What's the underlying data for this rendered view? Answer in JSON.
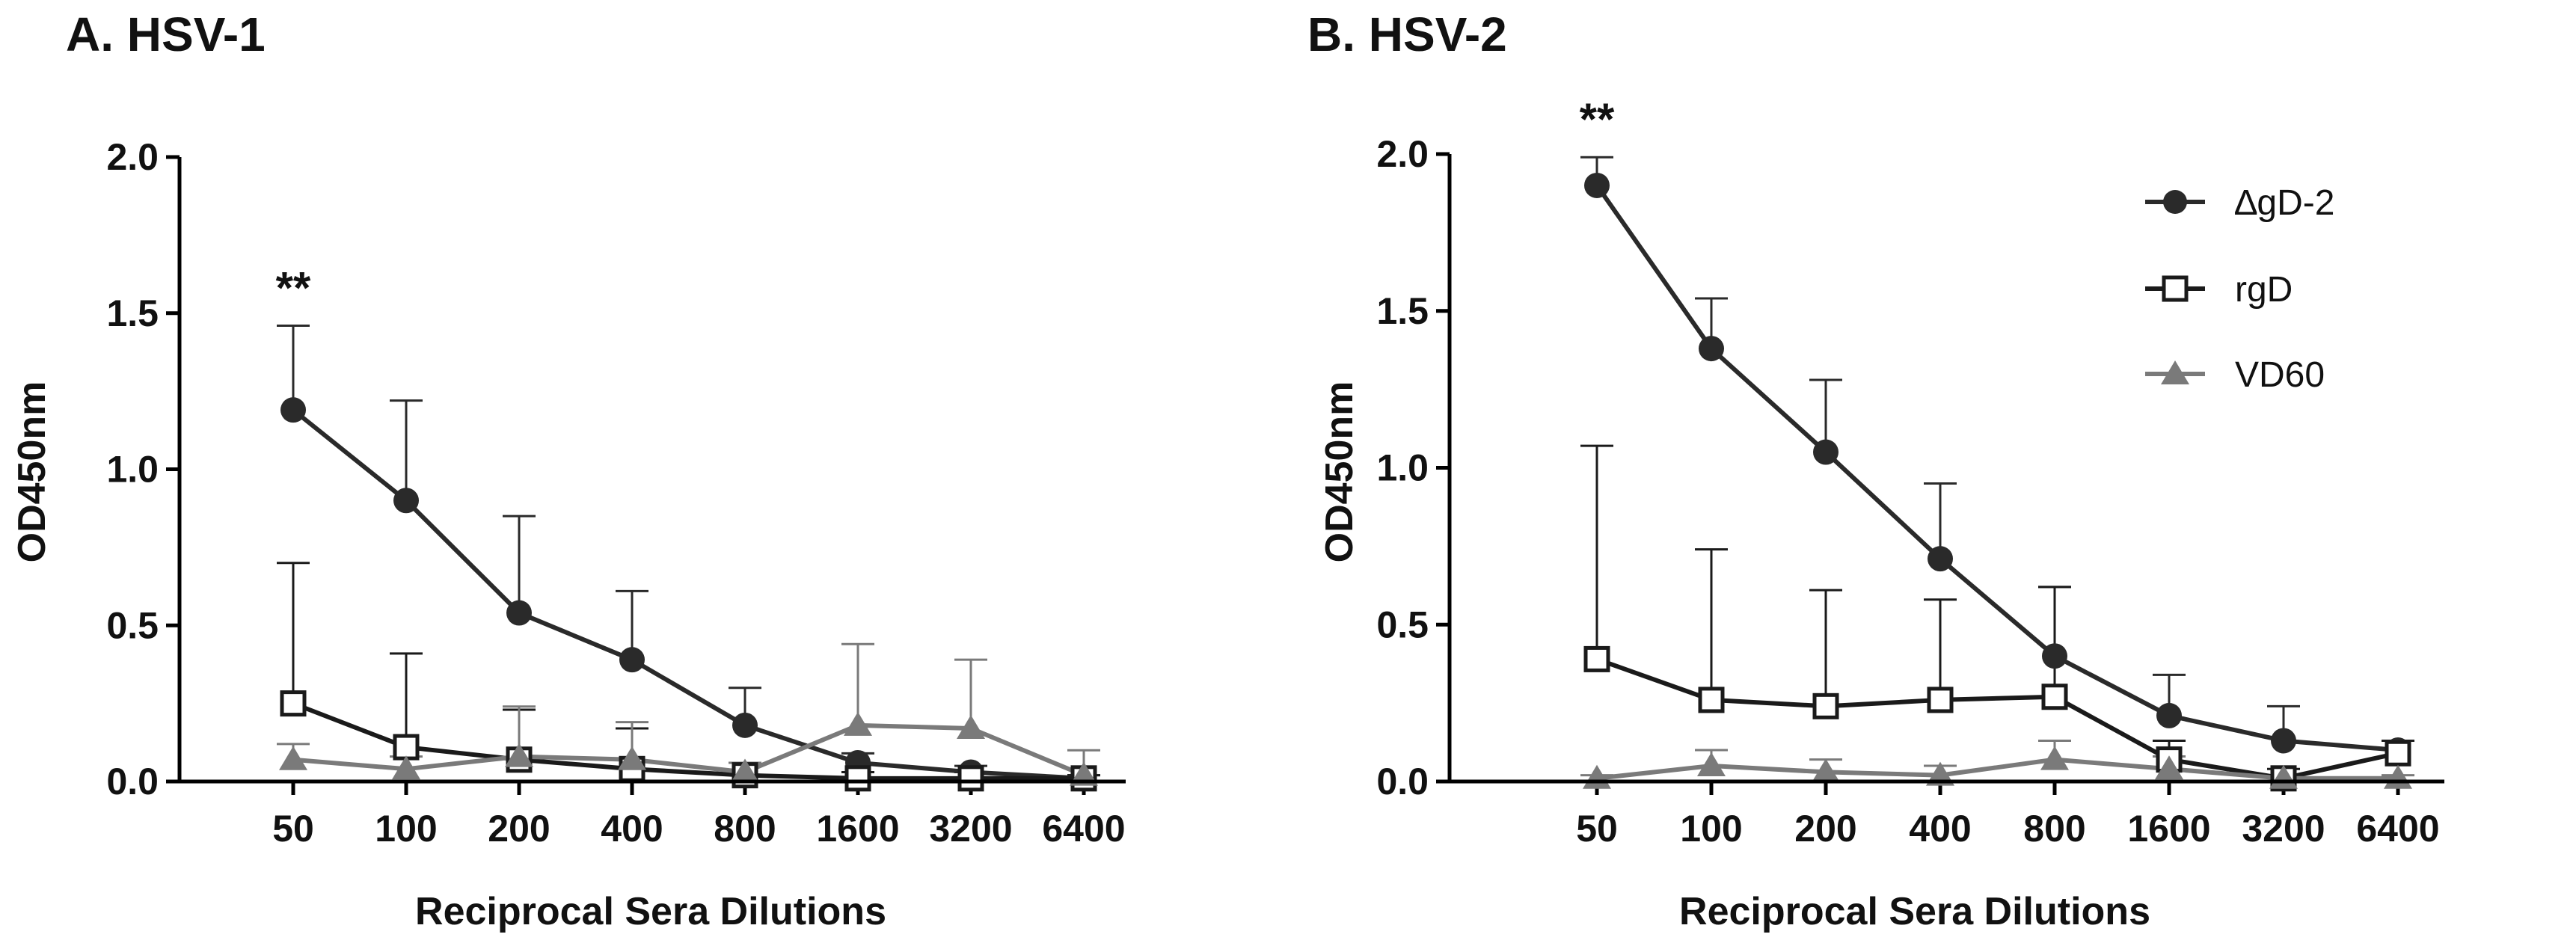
{
  "chart_data": [
    {
      "type": "line",
      "panel": "A. HSV-1",
      "title": "A. HSV-1",
      "xlabel": "Reciprocal Sera Dilutions",
      "ylabel": "OD450nm",
      "categories": [
        "50",
        "100",
        "200",
        "400",
        "800",
        "1600",
        "3200",
        "6400"
      ],
      "ylim": [
        0,
        2.0
      ],
      "yticks": [
        "0.0",
        "0.5",
        "1.0",
        "1.5",
        "2.0"
      ],
      "ytick_values": [
        0,
        0.5,
        1.0,
        1.5,
        2.0
      ],
      "annotation": {
        "text": "**",
        "category": "50"
      },
      "series": [
        {
          "name": "∆gD-2",
          "values": [
            1.19,
            0.9,
            0.54,
            0.39,
            0.18,
            0.06,
            0.03,
            0.01
          ],
          "errors": [
            0.27,
            0.32,
            0.31,
            0.22,
            0.12,
            0.03,
            0.02,
            0.01
          ]
        },
        {
          "name": "rgD",
          "values": [
            0.25,
            0.11,
            0.07,
            0.04,
            0.02,
            0.01,
            0.01,
            0.01
          ],
          "errors": [
            0.45,
            0.3,
            0.16,
            0.13,
            0.04,
            0.02,
            0.02,
            0.01
          ]
        },
        {
          "name": "VD60",
          "values": [
            0.07,
            0.04,
            0.08,
            0.07,
            0.03,
            0.18,
            0.17,
            0.02
          ],
          "errors": [
            0.05,
            0.04,
            0.16,
            0.12,
            0.03,
            0.26,
            0.22,
            0.08
          ]
        }
      ]
    },
    {
      "type": "line",
      "panel": "B. HSV-2",
      "title": "B. HSV-2",
      "xlabel": "Reciprocal Sera Dilutions",
      "ylabel": "OD450nm",
      "categories": [
        "50",
        "100",
        "200",
        "400",
        "800",
        "1600",
        "3200",
        "6400"
      ],
      "ylim": [
        0,
        2.0
      ],
      "yticks": [
        "0.0",
        "0.5",
        "1.0",
        "1.5",
        "2.0"
      ],
      "ytick_values": [
        0,
        0.5,
        1.0,
        1.5,
        2.0
      ],
      "annotation": {
        "text": "**",
        "category": "50"
      },
      "series": [
        {
          "name": "∆gD-2",
          "values": [
            1.9,
            1.38,
            1.05,
            0.71,
            0.4,
            0.21,
            0.13,
            0.1
          ],
          "errors": [
            0.09,
            0.16,
            0.23,
            0.24,
            0.22,
            0.13,
            0.11,
            0.03
          ]
        },
        {
          "name": "rgD",
          "values": [
            0.39,
            0.26,
            0.24,
            0.26,
            0.27,
            0.07,
            0.01,
            0.09
          ],
          "errors": [
            0.68,
            0.48,
            0.37,
            0.32,
            0.35,
            0.06,
            0.03,
            0.04
          ]
        },
        {
          "name": "VD60",
          "values": [
            0.01,
            0.05,
            0.03,
            0.02,
            0.07,
            0.04,
            0.01,
            0.01
          ],
          "errors": [
            0.01,
            0.05,
            0.04,
            0.03,
            0.06,
            0.04,
            0.01,
            0.01
          ]
        }
      ]
    }
  ],
  "legend": [
    {
      "label": "∆gD-2",
      "marker": "circle"
    },
    {
      "label": "rgD",
      "marker": "square"
    },
    {
      "label": "VD60",
      "marker": "triangle"
    }
  ],
  "colors": {
    "dgd2": "#2a2a2a",
    "rgd": "#1a1a1a",
    "vd60": "#7a7a7a",
    "axis": "#000000"
  }
}
